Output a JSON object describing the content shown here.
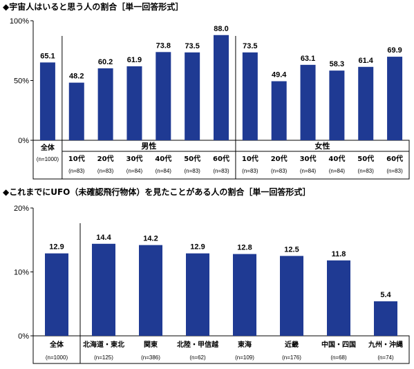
{
  "colors": {
    "bar": "#1f3a93",
    "axis": "#000000",
    "grid": "#b0b0b0"
  },
  "chart_data": [
    {
      "type": "bar",
      "title": "◆宇宙人はいると思う人の割合［単一回答形式］",
      "yticks": [
        "0%",
        "50%",
        "100%"
      ],
      "ylim": [
        0,
        100
      ],
      "groups": [
        {
          "label": "",
          "categories": [
            {
              "label": "全体",
              "n": "(n=1000)",
              "value": 65.1,
              "value_label": "65.1"
            }
          ]
        },
        {
          "label": "男性",
          "categories": [
            {
              "label": "10代",
              "n": "(n=83)",
              "value": 48.2,
              "value_label": "48.2"
            },
            {
              "label": "20代",
              "n": "(n=83)",
              "value": 60.2,
              "value_label": "60.2"
            },
            {
              "label": "30代",
              "n": "(n=84)",
              "value": 61.9,
              "value_label": "61.9"
            },
            {
              "label": "40代",
              "n": "(n=84)",
              "value": 73.8,
              "value_label": "73.8"
            },
            {
              "label": "50代",
              "n": "(n=83)",
              "value": 73.5,
              "value_label": "73.5"
            },
            {
              "label": "60代",
              "n": "(n=83)",
              "value": 88.0,
              "value_label": "88.0"
            }
          ]
        },
        {
          "label": "女性",
          "categories": [
            {
              "label": "10代",
              "n": "(n=83)",
              "value": 73.5,
              "value_label": "73.5"
            },
            {
              "label": "20代",
              "n": "(n=83)",
              "value": 49.4,
              "value_label": "49.4"
            },
            {
              "label": "30代",
              "n": "(n=84)",
              "value": 63.1,
              "value_label": "63.1"
            },
            {
              "label": "40代",
              "n": "(n=84)",
              "value": 58.3,
              "value_label": "58.3"
            },
            {
              "label": "50代",
              "n": "(n=83)",
              "value": 61.4,
              "value_label": "61.4"
            },
            {
              "label": "60代",
              "n": "(n=83)",
              "value": 69.9,
              "value_label": "69.9"
            }
          ]
        }
      ]
    },
    {
      "type": "bar",
      "title": "◆これまでにUFO（未確認飛行物体）を見たことがある人の割合［単一回答形式］",
      "yticks": [
        "0%",
        "10%",
        "20%"
      ],
      "ylim": [
        0,
        20
      ],
      "groups": [
        {
          "label": "",
          "categories": [
            {
              "label": "全体",
              "n": "(n=1000)",
              "value": 12.9,
              "value_label": "12.9"
            }
          ]
        },
        {
          "label": "",
          "categories": [
            {
              "label": "北海道・東北",
              "n": "(n=125)",
              "value": 14.4,
              "value_label": "14.4"
            },
            {
              "label": "関東",
              "n": "(n=386)",
              "value": 14.2,
              "value_label": "14.2"
            },
            {
              "label": "北陸・甲信越",
              "n": "(n=62)",
              "value": 12.9,
              "value_label": "12.9"
            },
            {
              "label": "東海",
              "n": "(n=109)",
              "value": 12.8,
              "value_label": "12.8"
            },
            {
              "label": "近畿",
              "n": "(n=176)",
              "value": 12.5,
              "value_label": "12.5"
            },
            {
              "label": "中国・四国",
              "n": "(n=68)",
              "value": 11.8,
              "value_label": "11.8"
            },
            {
              "label": "九州・沖縄",
              "n": "(n=74)",
              "value": 5.4,
              "value_label": "5.4"
            }
          ]
        }
      ]
    }
  ]
}
